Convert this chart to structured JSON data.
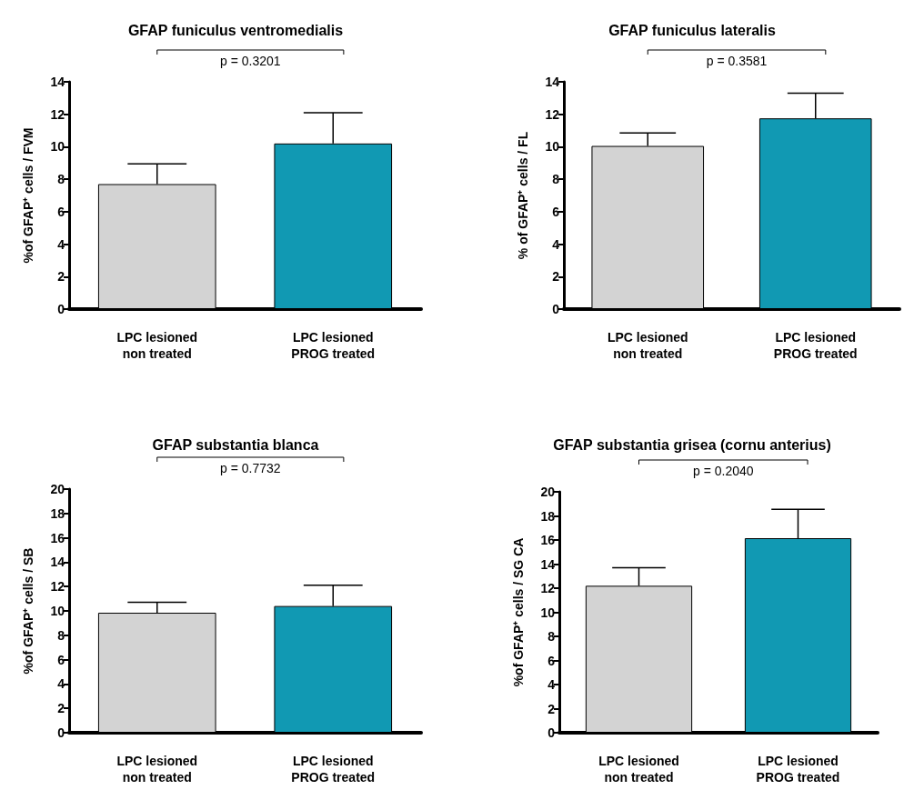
{
  "chart_data": [
    {
      "type": "bar",
      "title": "GFAP funiculus ventromedialis",
      "ylabel": "%of GFAP⁺ cells / FVM",
      "categories": [
        "LPC lesioned\nnon treated",
        "LPC lesioned\nPROG treated"
      ],
      "values": [
        7.7,
        10.2
      ],
      "colors": [
        "#d3d3d3",
        "#1199b3"
      ],
      "errors": [
        [
          7.7,
          8.95
        ],
        [
          10.2,
          12.1
        ]
      ],
      "ylim": [
        0,
        14
      ],
      "yticks": [
        0,
        2,
        4,
        6,
        8,
        10,
        12,
        14
      ],
      "annotations": [
        "p = 0.3201"
      ]
    },
    {
      "type": "bar",
      "title": "GFAP funiculus lateralis",
      "ylabel": "% of GFAP⁺ cells / FL",
      "categories": [
        "LPC lesioned\nnon treated",
        "LPC lesioned\nPROG treated"
      ],
      "values": [
        10.05,
        11.75
      ],
      "colors": [
        "#d3d3d3",
        "#1199b3"
      ],
      "errors": [
        [
          10.05,
          10.85
        ],
        [
          11.75,
          13.3
        ]
      ],
      "ylim": [
        0,
        14
      ],
      "yticks": [
        0,
        2,
        4,
        6,
        8,
        10,
        12,
        14
      ],
      "annotations": [
        "p = 0.3581"
      ]
    },
    {
      "type": "bar",
      "title": "GFAP substantia blanca",
      "ylabel": "%of GFAP⁺ cells / SB",
      "categories": [
        "LPC lesioned\nnon treated",
        "LPC lesioned\nPROG treated"
      ],
      "values": [
        9.85,
        10.4
      ],
      "colors": [
        "#d3d3d3",
        "#1199b3"
      ],
      "errors": [
        [
          9.85,
          10.7
        ],
        [
          10.4,
          12.1
        ]
      ],
      "ylim": [
        0,
        20
      ],
      "yticks": [
        0,
        2,
        4,
        6,
        8,
        10,
        12,
        14,
        16,
        18,
        20
      ],
      "annotations": [
        "p = 0.7732"
      ]
    },
    {
      "type": "bar",
      "title": "GFAP substantia grisea (cornu anterius)",
      "ylabel": "%of GFAP⁺ cells / SG CA",
      "categories": [
        "LPC lesioned\nnon treated",
        "LPC lesioned\nPROG treated"
      ],
      "values": [
        12.2,
        16.15
      ],
      "colors": [
        "#d3d3d3",
        "#1199b3"
      ],
      "errors": [
        [
          12.2,
          13.7
        ],
        [
          16.15,
          18.55
        ]
      ],
      "ylim": [
        0,
        20
      ],
      "yticks": [
        0,
        2,
        4,
        6,
        8,
        10,
        12,
        14,
        16,
        18,
        20
      ],
      "annotations": [
        "p = 0.2040"
      ]
    }
  ]
}
